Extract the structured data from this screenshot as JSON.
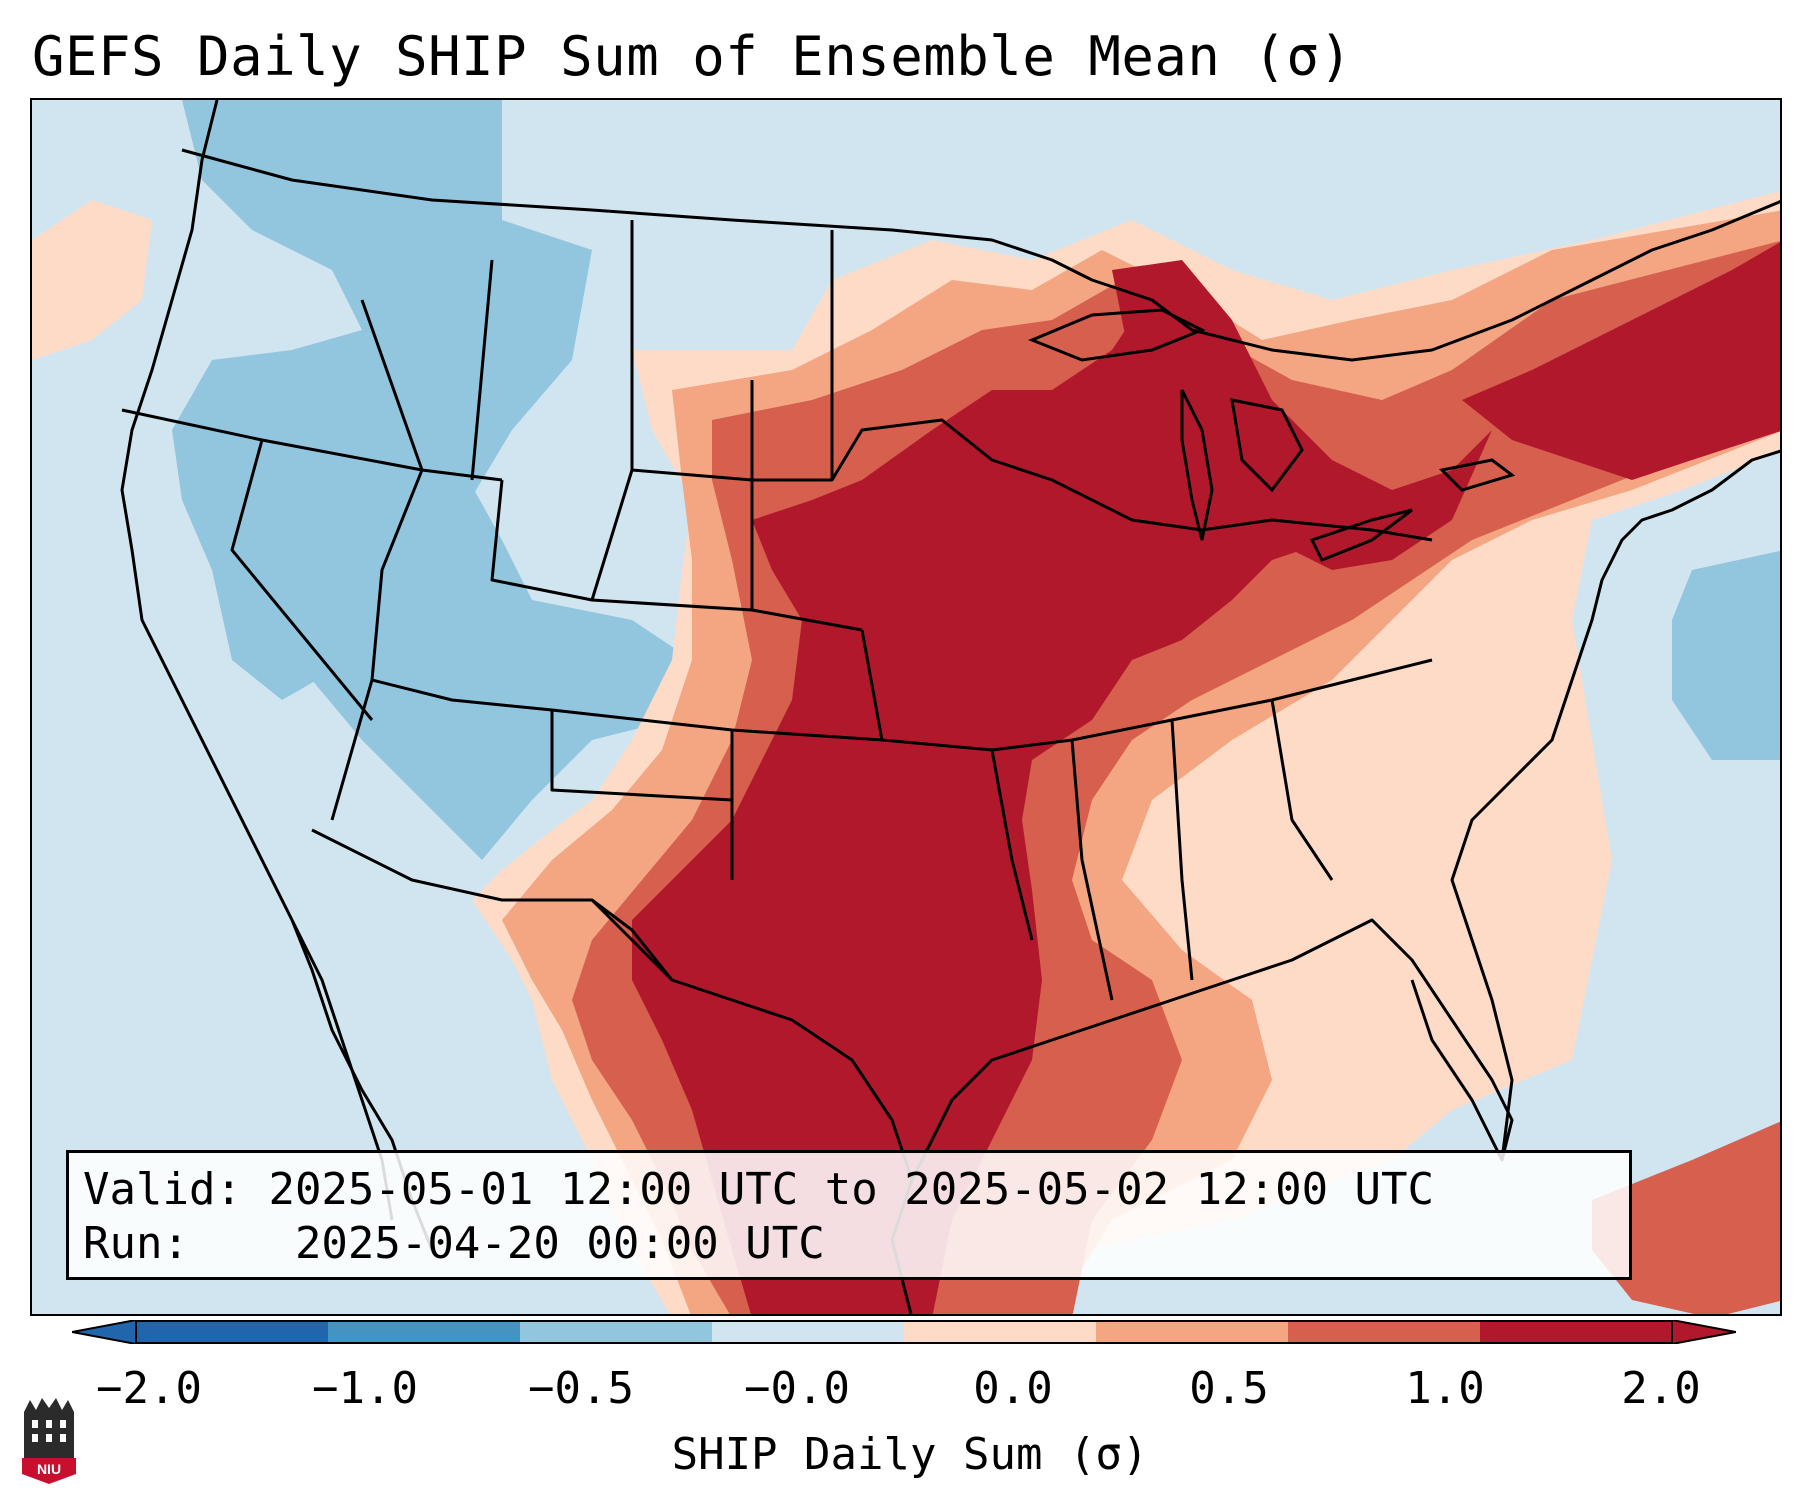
{
  "title": "GEFS Daily SHIP Sum of Ensemble Mean (σ)",
  "info": {
    "valid_label": "Valid:",
    "valid_value": "2025-05-01 12:00 UTC to 2025-05-02 12:00 UTC",
    "run_label": "Run:",
    "run_value": "2025-04-20 00:00 UTC"
  },
  "colorbar": {
    "label": "SHIP Daily Sum (σ)",
    "ticks": [
      "−2.0",
      "−1.0",
      "−0.5",
      "−0.0",
      "0.0",
      "0.5",
      "1.0",
      "2.0"
    ],
    "colors": [
      "#2166ac",
      "#4393c3",
      "#92c5de",
      "#d1e5f0",
      "#fddbc7",
      "#f4a582",
      "#d6604d",
      "#b2182b"
    ],
    "extend": "both"
  },
  "map": {
    "region": "Contiguous United States",
    "colors": {
      "ocean_background": "#d1e5f0",
      "neg_0_5": "#92c5de",
      "pos_0_0": "#fddbc7",
      "pos_0_5": "#f4a582",
      "pos_1_0": "#d6604d",
      "pos_2_0": "#b2182b"
    }
  },
  "logo": {
    "text": "NIU"
  }
}
